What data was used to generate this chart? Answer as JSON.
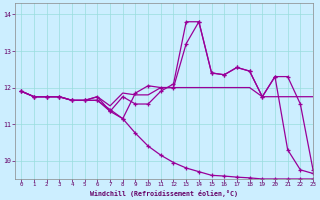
{
  "xlabel": "Windchill (Refroidissement éolien,°C)",
  "xlim": [
    -0.5,
    23
  ],
  "ylim": [
    9.5,
    14.3
  ],
  "yticks": [
    10,
    11,
    12,
    13,
    14
  ],
  "xticks": [
    0,
    1,
    2,
    3,
    4,
    5,
    6,
    7,
    8,
    9,
    10,
    11,
    12,
    13,
    14,
    15,
    16,
    17,
    18,
    19,
    20,
    21,
    22,
    23
  ],
  "bg_color": "#cceeff",
  "grid_color": "#99dddd",
  "line_color": "#990099",
  "line1": [
    11.9,
    11.75,
    11.75,
    11.75,
    11.65,
    11.65,
    11.75,
    11.35,
    11.15,
    11.85,
    12.05,
    12.0,
    12.0,
    13.2,
    13.8,
    12.4,
    12.35,
    12.55,
    12.45,
    11.75,
    12.3,
    12.3,
    11.55,
    9.75
  ],
  "line2": [
    11.9,
    11.75,
    11.75,
    11.75,
    11.65,
    11.65,
    11.75,
    11.5,
    11.85,
    11.8,
    11.8,
    12.0,
    12.0,
    12.0,
    12.0,
    12.0,
    12.0,
    12.0,
    12.0,
    11.75,
    11.75,
    11.75,
    11.75,
    11.75
  ],
  "line3": [
    11.9,
    11.75,
    11.75,
    11.75,
    11.65,
    11.65,
    11.65,
    11.35,
    11.75,
    11.55,
    11.55,
    11.9,
    12.1,
    13.8,
    13.8,
    12.4,
    12.35,
    12.55,
    12.45,
    11.75,
    12.3,
    10.3,
    9.75,
    9.65
  ],
  "line4": [
    11.9,
    11.75,
    11.75,
    11.75,
    11.65,
    11.65,
    11.65,
    11.4,
    11.15,
    10.75,
    10.4,
    10.15,
    9.95,
    9.8,
    9.7,
    9.6,
    9.58,
    9.55,
    9.53,
    9.5,
    9.5,
    9.5,
    9.5,
    9.5
  ]
}
